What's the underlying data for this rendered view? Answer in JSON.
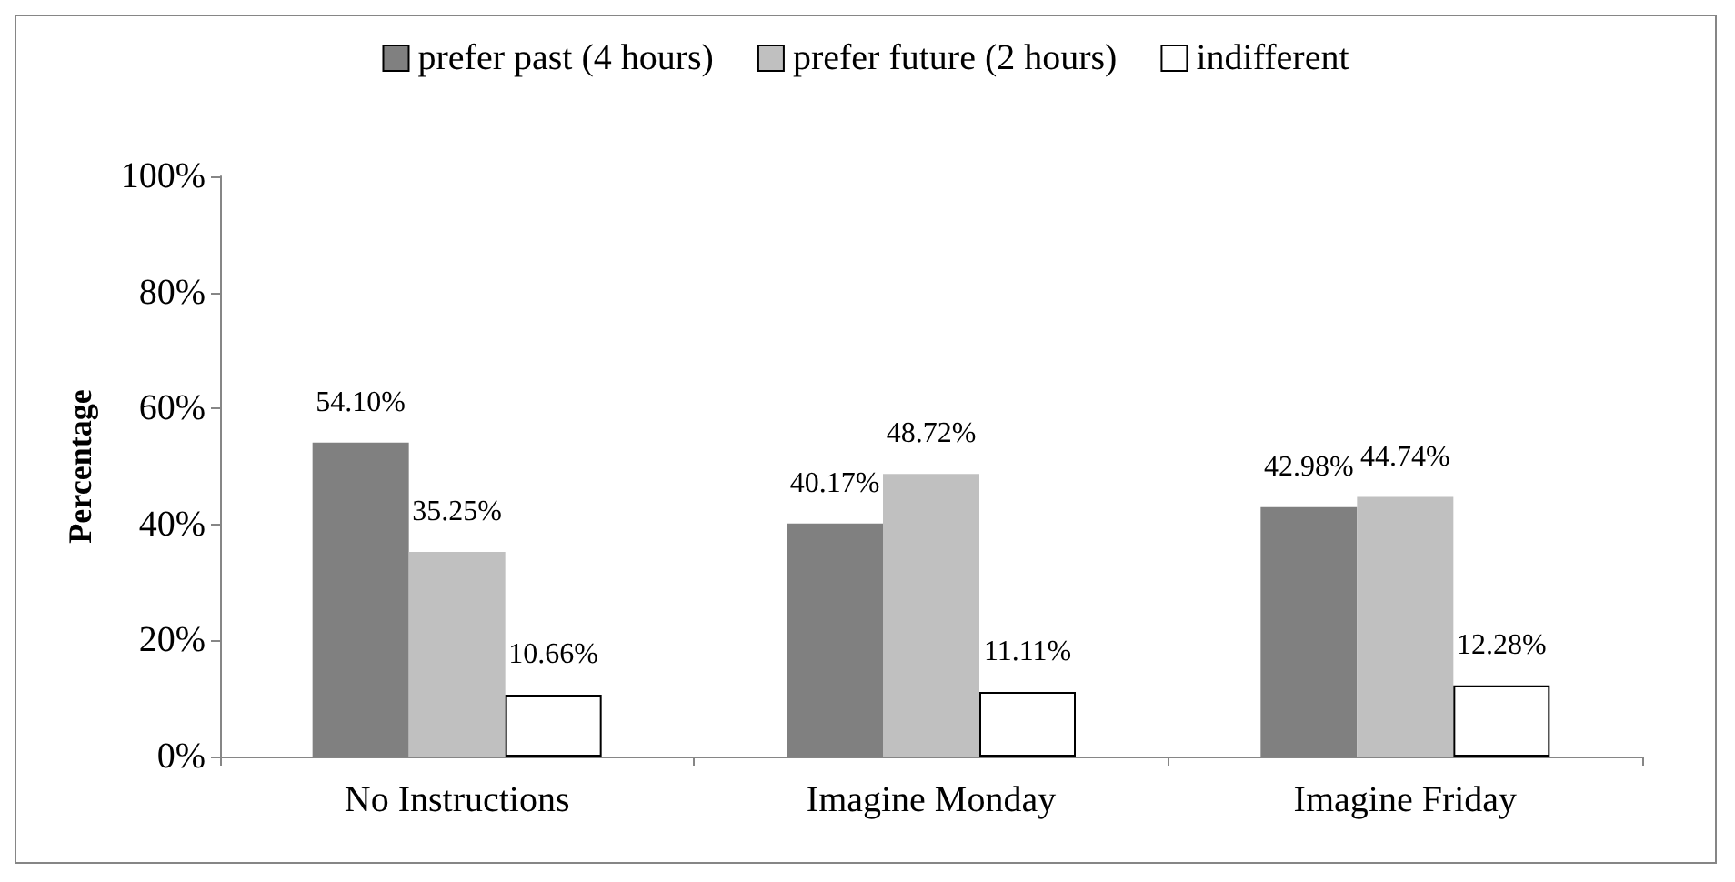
{
  "chart_data": {
    "type": "bar",
    "ylabel": "Percentage",
    "categories": [
      "No Instructions",
      "Imagine Monday",
      "Imagine Friday"
    ],
    "series": [
      {
        "name": "prefer past (4 hours)",
        "color": "#808080",
        "values": [
          54.1,
          40.17,
          42.98
        ],
        "value_labels": [
          "54.10%",
          "40.17%",
          "42.98%"
        ]
      },
      {
        "name": "prefer future (2 hours)",
        "color": "#c0c0c0",
        "values": [
          35.25,
          48.72,
          44.74
        ],
        "value_labels": [
          "35.25%",
          "48.72%",
          "44.74%"
        ]
      },
      {
        "name": "indifferent",
        "color": "#ffffff",
        "values": [
          10.66,
          11.11,
          12.28
        ],
        "value_labels": [
          "10.66%",
          "11.11%",
          "12.28%"
        ]
      }
    ],
    "ylim": [
      0,
      100
    ],
    "yticks": [
      {
        "value": 0,
        "label": "0%"
      },
      {
        "value": 20,
        "label": "20%"
      },
      {
        "value": 40,
        "label": "40%"
      },
      {
        "value": 60,
        "label": "60%"
      },
      {
        "value": 80,
        "label": "80%"
      },
      {
        "value": 100,
        "label": "100%"
      }
    ],
    "grid": false,
    "legend": "top"
  }
}
